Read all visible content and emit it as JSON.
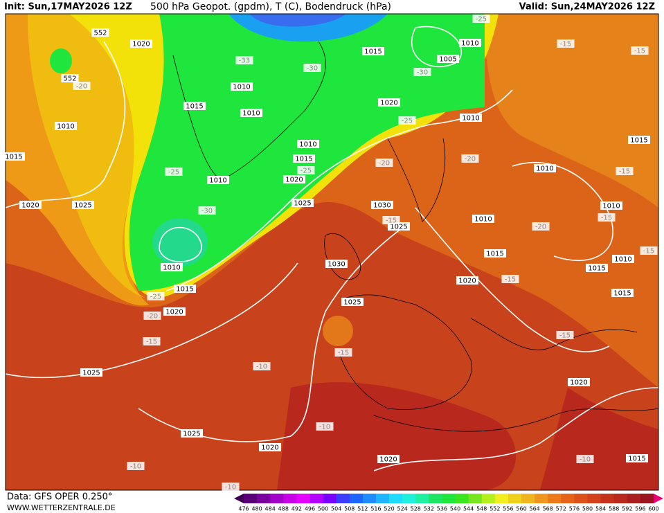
{
  "header": {
    "init": "Init: Sun,17MAY2026 12Z",
    "title": "500 hPa Geopot. (gpdm), T (C), Bodendruck (hPa)",
    "valid": "Valid: Sun,24MAY2026 12Z"
  },
  "footer": {
    "data": "Data: GFS OPER 0.250°",
    "site": "WWW.WETTERZENTRALE.DE"
  },
  "colorbar": {
    "labels": [
      "476",
      "480",
      "484",
      "488",
      "492",
      "496",
      "500",
      "504",
      "508",
      "512",
      "516",
      "520",
      "524",
      "528",
      "532",
      "536",
      "540",
      "544",
      "548",
      "552",
      "556",
      "560",
      "564",
      "568",
      "572",
      "576",
      "580",
      "584",
      "588",
      "592",
      "596",
      "600"
    ]
  },
  "pressure_labels": [
    "552",
    "1020",
    "552",
    "1010",
    "1015",
    "1020",
    "1025",
    "1015",
    "1010",
    "1010",
    "1010",
    "1015",
    "1010",
    "1020",
    "1025",
    "1015",
    "1005",
    "1010",
    "1020",
    "1010",
    "1030",
    "1025",
    "1010",
    "1010",
    "1015",
    "1010",
    "1015",
    "1015",
    "1010",
    "1015",
    "1020",
    "1030",
    "1025",
    "1010",
    "1015",
    "1020",
    "1025",
    "1025",
    "1020",
    "1020",
    "1020",
    "1015"
  ],
  "temperature_labels": [
    "-25",
    "-15",
    "-15",
    "-33",
    "-30",
    "-30",
    "-20",
    "-25",
    "-20",
    "-20",
    "-25",
    "-25",
    "-15",
    "-15",
    "-30",
    "-20",
    "-15",
    "-15",
    "-15",
    "-25",
    "-20",
    "-15",
    "-15",
    "-15",
    "-10",
    "-10",
    "-10",
    "-10",
    "-10"
  ]
}
